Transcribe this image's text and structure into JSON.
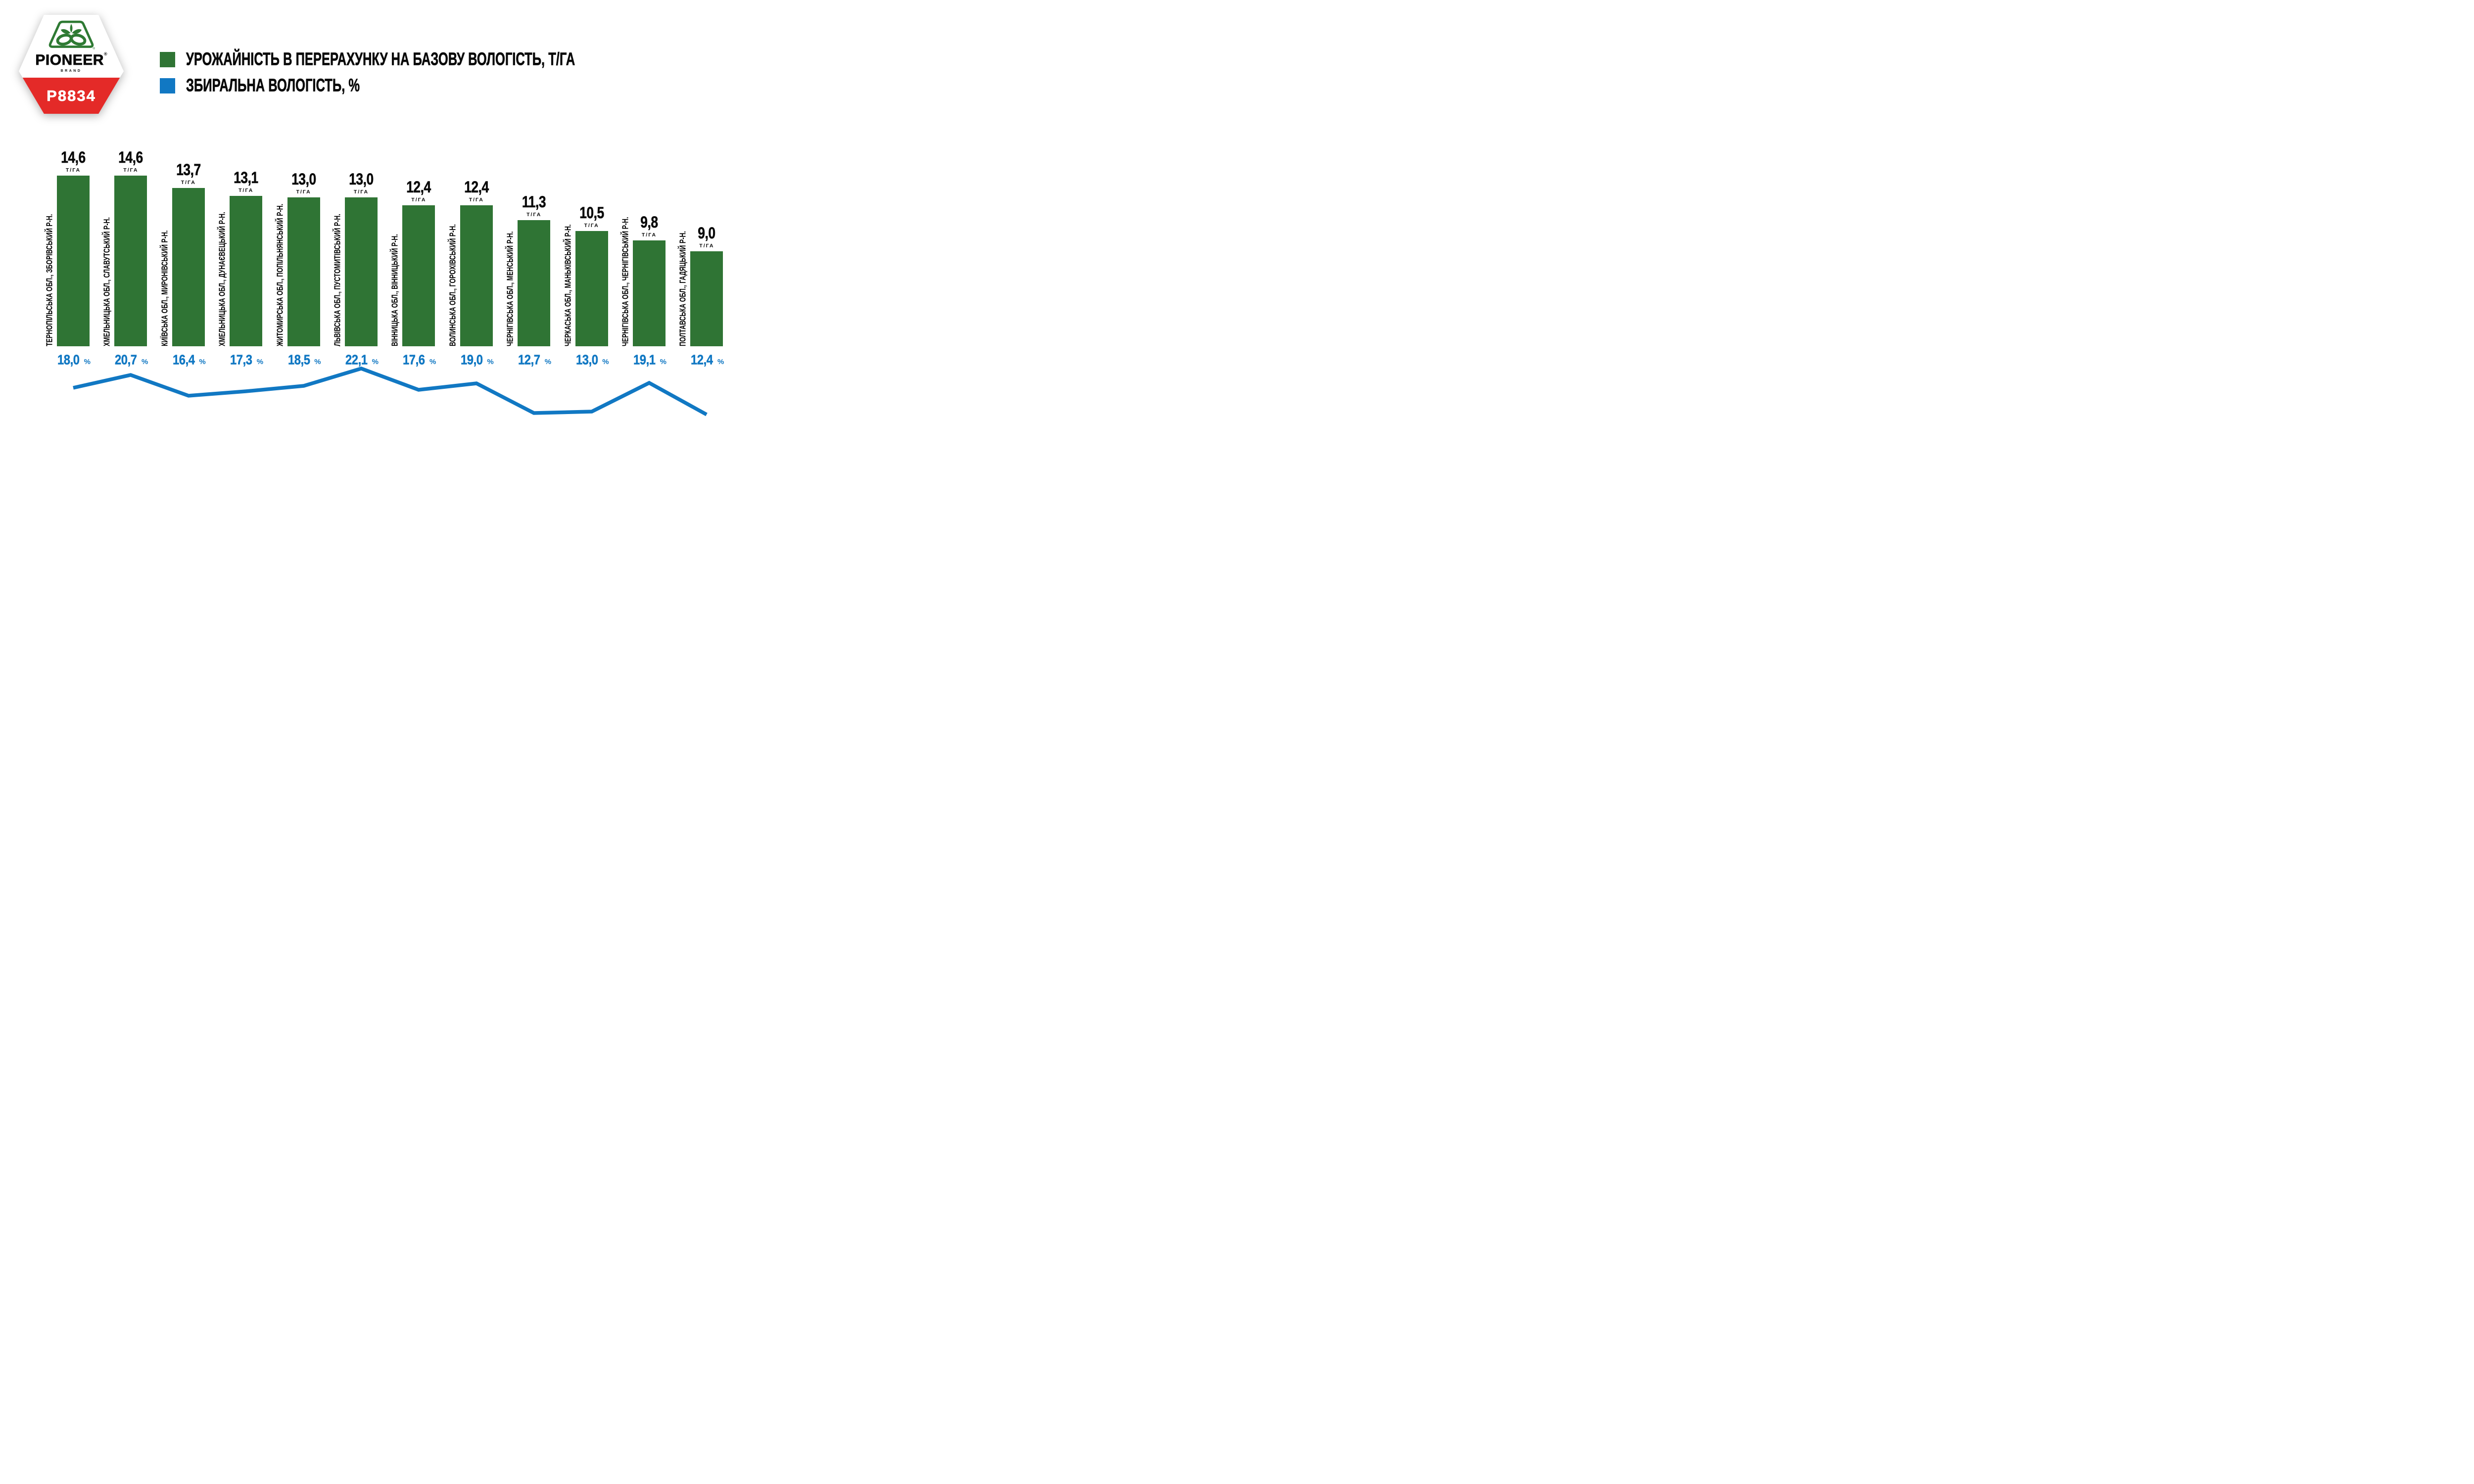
{
  "badge": {
    "brand": "PIONEER",
    "registered": "®",
    "brand_sub": "BRAND",
    "product": "P8834",
    "band_color": "#E42A28",
    "logo_color": "#2E7A33"
  },
  "legend": [
    {
      "label": "УРОЖАЙНІСТЬ В ПЕРЕРАХУНКУ НА БАЗОВУ ВОЛОГІСТЬ, Т/ГА",
      "color": "#2F7434"
    },
    {
      "label": "ЗБИРАЛЬНА ВОЛОГІСТЬ, %",
      "color": "#1178C3"
    }
  ],
  "chart_data": {
    "type": "bar",
    "title": "",
    "grid": false,
    "legend_position": "top-left",
    "categories": [
      "ТЕРНОПІЛЬСЬКА ОБЛ., ЗБОРІВСЬКИЙ Р-Н.",
      "ХМЕЛЬНИЦЬКА ОБЛ., СЛАВУТСЬКИЙ Р-Н.",
      "КИЇВСЬКА ОБЛ., МИРОНІВСЬКИЙ Р-Н.",
      "ХМЕЛЬНИЦЬКА ОБЛ., ДУНАЄВЕЦЬКИЙ Р-Н.",
      "ЖИТОМИРСЬКА ОБЛ., ПОПІЛЬНЯНСЬКИЙ Р-Н.",
      "ЛЬВІВСЬКА ОБЛ., ПУСТОМИТІВСЬКИЙ Р-Н.",
      "ВІННИЦЬКА ОБЛ., ВІННИЦЬКИЙ Р-Н.",
      "ВОЛИНСЬКА ОБЛ., ГОРОХІВСЬКИЙ Р-Н.",
      "ЧЕРНІГІВСЬКА ОБЛ., МЕНСЬКИЙ Р-Н.",
      "ЧЕРКАСЬКА ОБЛ., МАНЬКІВСЬКИЙ Р-Н.",
      "ЧЕРНІГІВСЬКА ОБЛ., ЧЕРНІГІВСЬКИЙ Р-Н.",
      "ПОЛТАВСЬКА ОБЛ., ГАДЯЦЬКИЙ Р-Н."
    ],
    "series": [
      {
        "name": "УРОЖАЙНІСТЬ В ПЕРЕРАХУНКУ НА БАЗОВУ ВОЛОГІСТЬ, Т/ГА",
        "type": "bar",
        "unit": "Т/ГА",
        "color": "#2F7434",
        "values": [
          14.6,
          14.6,
          13.7,
          13.1,
          13.0,
          13.0,
          12.4,
          12.4,
          11.3,
          10.5,
          9.8,
          9.0
        ],
        "values_display": [
          "14,6",
          "14,6",
          "13,7",
          "13,1",
          "13,0",
          "13,0",
          "12,4",
          "12,4",
          "11,3",
          "10,5",
          "9,8",
          "9,0"
        ]
      },
      {
        "name": "ЗБИРАЛЬНА ВОЛОГІСТЬ, %",
        "type": "line",
        "unit": "%",
        "color": "#1178C3",
        "values": [
          18.0,
          20.7,
          16.4,
          17.3,
          18.5,
          22.1,
          17.6,
          19.0,
          12.7,
          13.0,
          19.1,
          12.4
        ],
        "values_display": [
          "18,0",
          "20,7",
          "16,4",
          "17,3",
          "18,5",
          "22,1",
          "17,6",
          "19,0",
          "12,7",
          "13,0",
          "19,1",
          "12,4"
        ]
      }
    ]
  }
}
